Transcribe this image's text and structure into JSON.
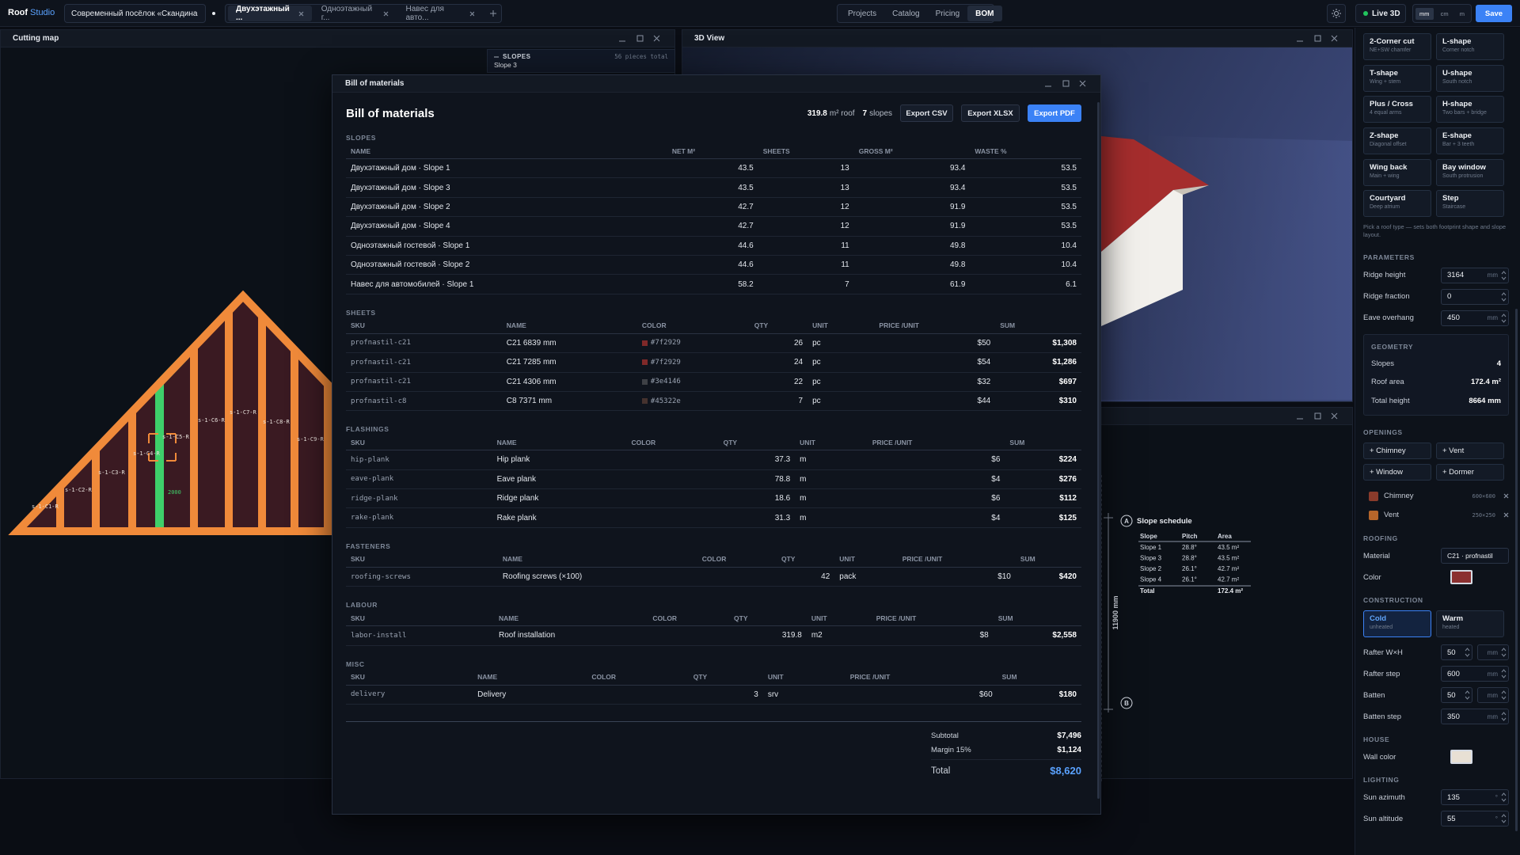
{
  "topbar": {
    "brand": {
      "part1": "Roof",
      "part2": "Studio"
    },
    "project": "Современный посёлок «Скандина",
    "tabs": [
      "Двухэтажный ...",
      "Одноэтажный г...",
      "Навес для авто..."
    ],
    "active_tab": 0,
    "nav": [
      "Projects",
      "Catalog",
      "Pricing",
      "BOM"
    ],
    "active_nav": 3,
    "live": "Live 3D",
    "units": [
      "mm",
      "cm",
      "m"
    ],
    "active_unit": 0,
    "save": "Save"
  },
  "cutting_map": {
    "title": "Cutting map",
    "overlay": {
      "label": "SLOPES",
      "count": "56 pieces total",
      "current": "Slope 3"
    },
    "pieces": [
      "s-1-C1-R",
      "s-1-C2-R",
      "s-1-C3-R",
      "s-1-C4-R",
      "s-1-C5-R",
      "s-1-C6-R",
      "s-1-C7-R",
      "s-1-C8-R",
      "s-1-C9-R"
    ],
    "dimension": "2000"
  },
  "view3d": {
    "title": "3D View"
  },
  "schedule": {
    "marker_a": "A",
    "marker_b": "B",
    "title": "Slope schedule",
    "columns": [
      "Slope",
      "Pitch",
      "Area"
    ],
    "rows": [
      [
        "Slope 1",
        "28.8°",
        "43.5 m²"
      ],
      [
        "Slope 3",
        "28.8°",
        "43.5 m²"
      ],
      [
        "Slope 2",
        "26.1°",
        "42.7 m²"
      ],
      [
        "Slope 4",
        "26.1°",
        "42.7 m²"
      ]
    ],
    "total": [
      "Total",
      "172.4 m²"
    ],
    "dimension": "11900 mm"
  },
  "bom": {
    "window_title": "Bill of materials",
    "title": "Bill of materials",
    "summary": {
      "area": "319.8",
      "area_unit": "m² roof",
      "slopes": "7",
      "slopes_unit": "slopes"
    },
    "actions": [
      "Export CSV",
      "Export XLSX",
      "Export PDF"
    ],
    "sections": [
      {
        "title": "SLOPES",
        "columns": [
          "NAME",
          "NET M²",
          "SHEETS",
          "GROSS M²",
          "WASTE %"
        ],
        "rows": [
          {
            "name": "Двухэтажный дом · Slope 1",
            "net": "43.5",
            "sheets": "13",
            "gross": "93.4",
            "waste": "53.5"
          },
          {
            "name": "Двухэтажный дом · Slope 3",
            "net": "43.5",
            "sheets": "13",
            "gross": "93.4",
            "waste": "53.5"
          },
          {
            "name": "Двухэтажный дом · Slope 2",
            "net": "42.7",
            "sheets": "12",
            "gross": "91.9",
            "waste": "53.5"
          },
          {
            "name": "Двухэтажный дом · Slope 4",
            "net": "42.7",
            "sheets": "12",
            "gross": "91.9",
            "waste": "53.5"
          },
          {
            "name": "Одноэтажный гостевой · Slope 1",
            "net": "44.6",
            "sheets": "11",
            "gross": "49.8",
            "waste": "10.4"
          },
          {
            "name": "Одноэтажный гостевой · Slope 2",
            "net": "44.6",
            "sheets": "11",
            "gross": "49.8",
            "waste": "10.4"
          },
          {
            "name": "Навес для автомобилей · Slope 1",
            "net": "58.2",
            "sheets": "7",
            "gross": "61.9",
            "waste": "6.1"
          }
        ]
      },
      {
        "title": "SHEETS",
        "columns": [
          "SKU",
          "NAME",
          "COLOR",
          "QTY",
          "UNIT",
          "PRICE /UNIT",
          "SUM"
        ],
        "rows": [
          {
            "sku": "profnastil-c21",
            "name": "C21 6839 mm",
            "color": "#7f2929",
            "qty": "26",
            "unit": "pc",
            "price": "$50",
            "sum": "$1,308"
          },
          {
            "sku": "profnastil-c21",
            "name": "C21 7285 mm",
            "color": "#7f2929",
            "qty": "24",
            "unit": "pc",
            "price": "$54",
            "sum": "$1,286"
          },
          {
            "sku": "profnastil-c21",
            "name": "C21 4306 mm",
            "color": "#3e4146",
            "qty": "22",
            "unit": "pc",
            "price": "$32",
            "sum": "$697"
          },
          {
            "sku": "profnastil-c8",
            "name": "C8 7371 mm",
            "color": "#45322e",
            "qty": "7",
            "unit": "pc",
            "price": "$44",
            "sum": "$310"
          }
        ]
      },
      {
        "title": "FLASHINGS",
        "columns": [
          "SKU",
          "NAME",
          "COLOR",
          "QTY",
          "UNIT",
          "PRICE /UNIT",
          "SUM"
        ],
        "rows": [
          {
            "sku": "hip-plank",
            "name": "Hip plank",
            "qty": "37.3",
            "unit": "m",
            "price": "$6",
            "sum": "$224"
          },
          {
            "sku": "eave-plank",
            "name": "Eave plank",
            "qty": "78.8",
            "unit": "m",
            "price": "$4",
            "sum": "$276"
          },
          {
            "sku": "ridge-plank",
            "name": "Ridge plank",
            "qty": "18.6",
            "unit": "m",
            "price": "$6",
            "sum": "$112"
          },
          {
            "sku": "rake-plank",
            "name": "Rake plank",
            "qty": "31.3",
            "unit": "m",
            "price": "$4",
            "sum": "$125"
          }
        ]
      },
      {
        "title": "FASTENERS",
        "columns": [
          "SKU",
          "NAME",
          "COLOR",
          "QTY",
          "UNIT",
          "PRICE /UNIT",
          "SUM"
        ],
        "rows": [
          {
            "sku": "roofing-screws",
            "name": "Roofing screws (×100)",
            "qty": "42",
            "unit": "pack",
            "price": "$10",
            "sum": "$420"
          }
        ]
      },
      {
        "title": "LABOUR",
        "columns": [
          "SKU",
          "NAME",
          "COLOR",
          "QTY",
          "UNIT",
          "PRICE /UNIT",
          "SUM"
        ],
        "rows": [
          {
            "sku": "labor-install",
            "name": "Roof installation",
            "qty": "319.8",
            "unit": "m2",
            "price": "$8",
            "sum": "$2,558"
          }
        ]
      },
      {
        "title": "MISC",
        "columns": [
          "SKU",
          "NAME",
          "COLOR",
          "QTY",
          "UNIT",
          "PRICE /UNIT",
          "SUM"
        ],
        "rows": [
          {
            "sku": "delivery",
            "name": "Delivery",
            "qty": "3",
            "unit": "srv",
            "price": "$60",
            "sum": "$180"
          }
        ]
      }
    ],
    "totals": {
      "subtotal": {
        "label": "Subtotal",
        "value": "$7,496"
      },
      "margin": {
        "label": "Margin 15%",
        "value": "$1,124"
      },
      "total": {
        "label": "Total",
        "value": "$8,620"
      }
    }
  },
  "sidebar": {
    "roof_types": [
      {
        "name": "2-Corner cut",
        "desc": "NE+SW chamfer"
      },
      {
        "name": "L-shape",
        "desc": "Corner notch"
      },
      {
        "name": "T-shape",
        "desc": "Wing + stem"
      },
      {
        "name": "U-shape",
        "desc": "South notch"
      },
      {
        "name": "Plus / Cross",
        "desc": "4 equal arms"
      },
      {
        "name": "H-shape",
        "desc": "Two bars + bridge"
      },
      {
        "name": "Z-shape",
        "desc": "Diagonal offset"
      },
      {
        "name": "E-shape",
        "desc": "Bar + 3 teeth"
      },
      {
        "name": "Wing back",
        "desc": "Main + wing"
      },
      {
        "name": "Bay window",
        "desc": "South protrusion"
      },
      {
        "name": "Courtyard",
        "desc": "Deep atrium"
      },
      {
        "name": "Step",
        "desc": "Staircase"
      }
    ],
    "hint": "Pick a roof type — sets both footprint shape and slope layout.",
    "parameters": {
      "title": "PARAMETERS",
      "fields": [
        {
          "label": "Ridge height",
          "value": "3164",
          "unit": "mm"
        },
        {
          "label": "Ridge fraction",
          "value": "0"
        },
        {
          "label": "Eave overhang",
          "value": "450",
          "unit": "mm"
        }
      ]
    },
    "geometry": {
      "title": "GEOMETRY",
      "rows": [
        {
          "label": "Slopes",
          "value": "4"
        },
        {
          "label": "Roof area",
          "value": "172.4 m²"
        },
        {
          "label": "Total height",
          "value": "8664 mm"
        }
      ]
    },
    "openings": {
      "title": "OPENINGS",
      "buttons": [
        "+ Chimney",
        "+ Vent",
        "+ Window",
        "+ Dormer"
      ],
      "items": [
        {
          "name": "Chimney",
          "size": "600×600",
          "color": "#8a3b2b"
        },
        {
          "name": "Vent",
          "size": "250×250",
          "color": "#b5652a"
        }
      ]
    },
    "roofing": {
      "title": "ROOFING",
      "material": {
        "label": "Material",
        "value": "C21 · profnastil"
      },
      "color": {
        "label": "Color",
        "value": "#8b3030"
      }
    },
    "construction": {
      "title": "CONSTRUCTION",
      "modes": [
        {
          "name": "Cold",
          "desc": "unheated"
        },
        {
          "name": "Warm",
          "desc": "heated"
        }
      ],
      "active_mode": 0,
      "fields": [
        {
          "label": "Rafter W×H",
          "value": "50",
          "unit": "mm",
          "pair": true
        },
        {
          "label": "Rafter step",
          "value": "600",
          "unit": "mm"
        },
        {
          "label": "Batten",
          "value": "50",
          "unit": "mm",
          "pair": true
        },
        {
          "label": "Batten step",
          "value": "350",
          "unit": "mm"
        }
      ]
    },
    "house": {
      "title": "HOUSE",
      "wall_color": {
        "label": "Wall color",
        "value": "#e8e0d4"
      }
    },
    "lighting": {
      "title": "LIGHTING",
      "fields": [
        {
          "label": "Sun azimuth",
          "value": "135",
          "unit": "°"
        },
        {
          "label": "Sun altitude",
          "value": "55",
          "unit": "°"
        }
      ]
    }
  }
}
